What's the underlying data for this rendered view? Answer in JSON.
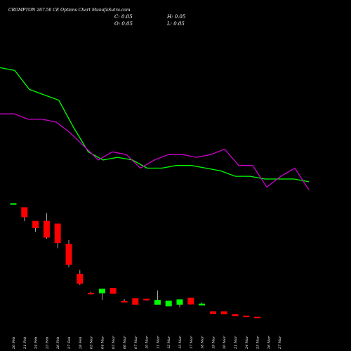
{
  "header": {
    "title": "CROMPTON 267.50 CE Options Chart MunafaSutra.com",
    "open_label": "O: 0.05",
    "high_label": "H: 0.05",
    "close_label": "C: 0.05",
    "low_label": "L: 0.05"
  },
  "chart_data": {
    "type": "candlestick",
    "title": "CROMPTON 267.50 CE Options Chart MunafaSutra.com",
    "categories": [
      "20 Feb",
      "21 Feb",
      "24 Feb",
      "25 Feb",
      "26 Feb",
      "27 Feb",
      "28 Feb",
      "03 Mar",
      "04 Mar",
      "05 Mar",
      "06 Mar",
      "07 Mar",
      "10 Mar",
      "11 Mar",
      "12 Mar",
      "13 Mar",
      "17 Mar",
      "18 Mar",
      "19 Mar",
      "20 Mar",
      "21 Mar",
      "24 Mar",
      "25 Mar",
      "26 Mar",
      "27 Mar"
    ],
    "colors": {
      "up": "#00ff00",
      "down": "#ff0000",
      "ma_short": "#00ff00",
      "ma_long": "#cc00cc",
      "background": "#000000"
    },
    "candles": [
      {
        "date": "20 Feb",
        "open": 38.0,
        "high": 38.0,
        "low": 38.0,
        "close": 38.0
      },
      {
        "date": "21 Feb",
        "open": 36.5,
        "high": 36.5,
        "low": 31.5,
        "close": 33.0
      },
      {
        "date": "24 Feb",
        "open": 31.5,
        "high": 31.5,
        "low": 27.5,
        "close": 29.0
      },
      {
        "date": "25 Feb",
        "open": 31.5,
        "high": 34.5,
        "low": 25.0,
        "close": 25.5
      },
      {
        "date": "26 Feb",
        "open": 30.5,
        "high": 30.5,
        "low": 21.5,
        "close": 23.5
      },
      {
        "date": "27 Feb",
        "open": 23.0,
        "high": 24.5,
        "low": 14.5,
        "close": 15.5
      },
      {
        "date": "28 Feb",
        "open": 12.0,
        "high": 13.5,
        "low": 8.0,
        "close": 8.5
      },
      {
        "date": "03 Mar",
        "open": 5.0,
        "high": 5.5,
        "low": 4.5,
        "close": 4.7
      },
      {
        "date": "04 Mar",
        "open": 5.0,
        "high": 6.5,
        "low": 2.5,
        "close": 6.5
      },
      {
        "date": "05 Mar",
        "open": 6.8,
        "high": 6.8,
        "low": 4.8,
        "close": 4.8
      },
      {
        "date": "06 Mar",
        "open": 2.0,
        "high": 2.8,
        "low": 1.8,
        "close": 1.8
      },
      {
        "date": "07 Mar",
        "open": 3.0,
        "high": 3.0,
        "low": 0.8,
        "close": 0.8
      },
      {
        "date": "10 Mar",
        "open": 2.8,
        "high": 2.8,
        "low": 2.2,
        "close": 2.4
      },
      {
        "date": "11 Mar",
        "open": 0.8,
        "high": 6.0,
        "low": 0.8,
        "close": 2.4
      },
      {
        "date": "12 Mar",
        "open": 0.2,
        "high": 2.1,
        "low": 0.2,
        "close": 2.1
      },
      {
        "date": "13 Mar",
        "open": 0.8,
        "high": 2.6,
        "low": -0.2,
        "close": 2.6
      },
      {
        "date": "17 Mar",
        "open": 3.2,
        "high": 3.2,
        "low": 0.8,
        "close": 0.9
      },
      {
        "date": "18 Mar",
        "open": 0.5,
        "high": 1.6,
        "low": 0.5,
        "close": 1.0
      },
      {
        "date": "19 Mar",
        "open": -1.8,
        "high": -1.8,
        "low": -2.6,
        "close": -2.6
      },
      {
        "date": "20 Mar",
        "open": -1.8,
        "high": -1.8,
        "low": -2.7,
        "close": -2.7
      },
      {
        "date": "21 Mar",
        "open": -2.8,
        "high": -2.8,
        "low": -3.4,
        "close": -3.4
      },
      {
        "date": "24 Mar",
        "open": -3.4,
        "high": -3.4,
        "low": -3.8,
        "close": -3.6
      },
      {
        "date": "25 Mar",
        "open": -3.8,
        "high": -3.8,
        "low": -4.2,
        "close": -4.0
      }
    ],
    "ma_short": [
      88,
      87,
      80,
      78,
      76,
      66,
      57,
      54,
      55,
      54,
      51,
      51,
      52,
      52,
      51,
      50,
      48,
      48,
      47,
      47,
      47,
      46
    ],
    "ma_long": [
      71,
      71,
      69,
      69,
      68,
      64,
      59,
      54,
      57,
      56,
      51,
      54,
      56,
      56,
      55,
      56,
      58,
      52,
      52,
      44,
      48,
      51,
      43
    ],
    "ylim": [
      -6,
      100
    ]
  }
}
